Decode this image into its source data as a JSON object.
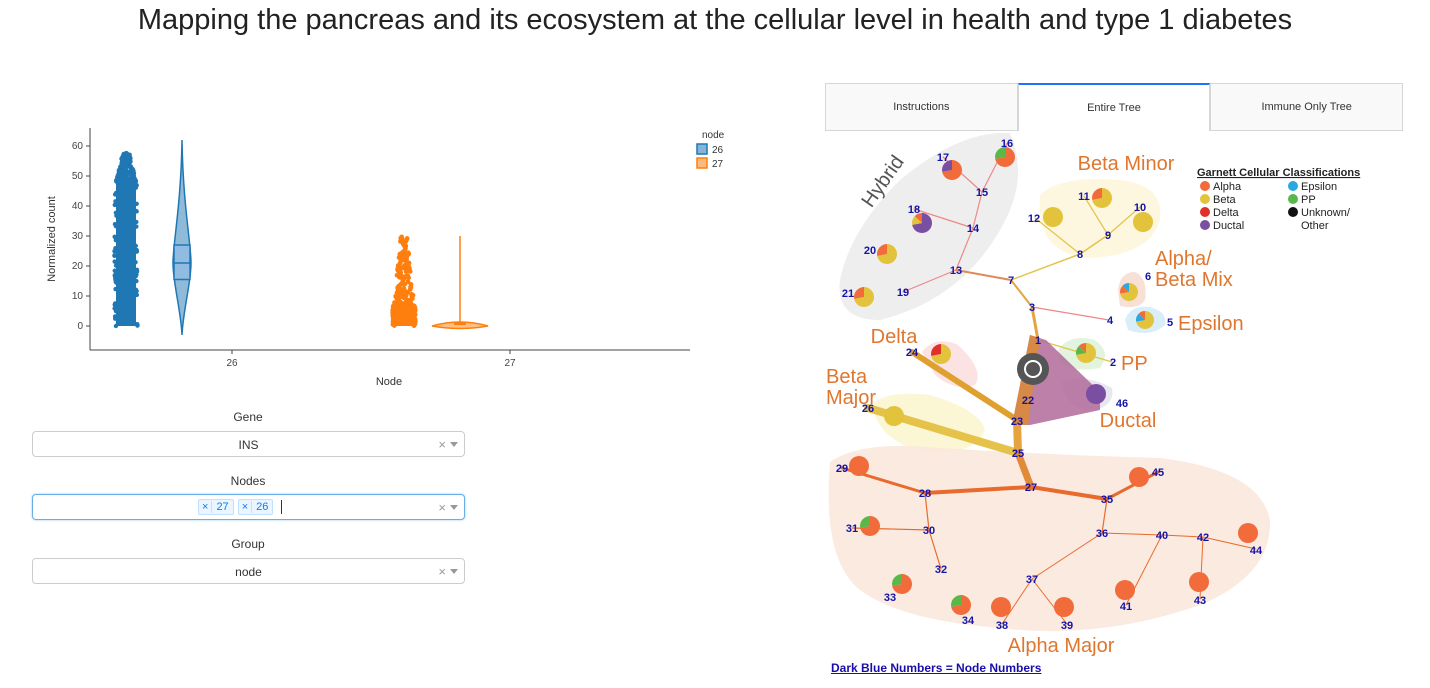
{
  "page": {
    "title": "Mapping the pancreas and its ecosystem at the cellular level in health and type 1 diabetes"
  },
  "chart_data": {
    "type": "violin",
    "ylabel": "Normalized count",
    "xlabel": "Node",
    "yticks": [
      0,
      10,
      20,
      30,
      40,
      50,
      60
    ],
    "ylim": [
      -8,
      66
    ],
    "categories": [
      "26",
      "27"
    ],
    "legend": {
      "title": "node",
      "placement": "top-right",
      "entries": [
        "26",
        "27"
      ]
    },
    "series": [
      {
        "name": "26",
        "color": "#1f77b4",
        "strip_max": 58,
        "dense_max": 48,
        "box": {
          "q1": 15.5,
          "median": 21,
          "q3": 27,
          "whisker_low": -3,
          "whisker_high": 62
        }
      },
      {
        "name": "27",
        "color": "#ff7f0e",
        "strip_max": 30,
        "dense_max": 7,
        "box": {
          "q1": 0,
          "median": 0.5,
          "q3": 1,
          "whisker_low": 0,
          "whisker_high": 30
        }
      }
    ]
  },
  "controls": {
    "gene": {
      "label": "Gene",
      "value": "INS"
    },
    "nodes": {
      "label": "Nodes",
      "chips": [
        "27",
        "26"
      ]
    },
    "group": {
      "label": "Group",
      "value": "node"
    },
    "clear_glyph": "×"
  },
  "tabs": [
    "Instructions",
    "Entire Tree",
    "Immune Only Tree"
  ],
  "selected_tab": "Entire Tree",
  "tree": {
    "legend_title": "Garnett Cellular Classifications",
    "legend": [
      {
        "label": "Alpha",
        "color": "#f26b3a"
      },
      {
        "label": "Beta",
        "color": "#e3c23c"
      },
      {
        "label": "Delta",
        "color": "#e0302a"
      },
      {
        "label": "Ductal",
        "color": "#7a4ea0"
      },
      {
        "label": "Epsilon",
        "color": "#2aa8e0"
      },
      {
        "label": "PP",
        "color": "#5ab84a"
      },
      {
        "label": "Unknown/\nOther",
        "color": "#111111"
      }
    ],
    "region_labels": [
      "Hybrid",
      "Beta Minor",
      "Alpha/\nBeta Mix",
      "Epsilon",
      "Delta",
      "PP",
      "Beta\nMajor",
      "Ductal",
      "Alpha Major"
    ],
    "node_numbers": [
      "1",
      "2",
      "3",
      "4",
      "5",
      "6",
      "7",
      "8",
      "9",
      "10",
      "11",
      "12",
      "13",
      "14",
      "15",
      "16",
      "17",
      "18",
      "19",
      "20",
      "21",
      "22",
      "23",
      "24",
      "25",
      "26",
      "27",
      "28",
      "29",
      "30",
      "31",
      "32",
      "33",
      "34",
      "35",
      "36",
      "37",
      "38",
      "39",
      "40",
      "41",
      "42",
      "43",
      "44",
      "45",
      "46"
    ],
    "footer": "Dark Blue Numbers = Node Numbers"
  }
}
